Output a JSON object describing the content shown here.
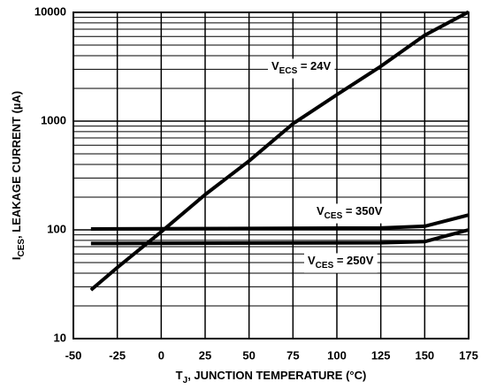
{
  "chart_data": {
    "type": "line",
    "xlabel": {
      "symbol": "T",
      "subscript": "J",
      "rest": ", JUNCTION TEMPERATURE (°C)"
    },
    "ylabel": {
      "symbol": "I",
      "subscript": "CES",
      "rest": ", LEAKAGE CURRENT (µA)"
    },
    "xlim": [
      -50,
      175
    ],
    "xticks": [
      -50,
      -25,
      0,
      25,
      50,
      75,
      100,
      125,
      150,
      175
    ],
    "ylim": [
      10,
      10000
    ],
    "yticks": [
      10,
      100,
      1000,
      10000
    ],
    "log_y": true,
    "grid": true,
    "minor_grid": true,
    "series": [
      {
        "label": {
          "symbol": "V",
          "subscript": "ECS",
          "rest": " = 24V"
        },
        "color": "#000000",
        "x": [
          -40,
          -25,
          0,
          25,
          50,
          75,
          100,
          125,
          150,
          175
        ],
        "values": [
          28,
          45,
          96,
          211,
          430,
          946,
          1750,
          3190,
          6160,
          10100
        ]
      },
      {
        "label": {
          "symbol": "V",
          "subscript": "CES",
          "rest": " = 350V"
        },
        "color": "#000000",
        "x": [
          -40,
          125,
          150,
          175
        ],
        "values": [
          102,
          104,
          108,
          137
        ]
      },
      {
        "label": {
          "symbol": "V",
          "subscript": "CES",
          "rest": " = 250V"
        },
        "color": "#000000",
        "x": [
          -40,
          125,
          150,
          175
        ],
        "values": [
          75,
          76,
          78,
          100
        ]
      }
    ]
  }
}
